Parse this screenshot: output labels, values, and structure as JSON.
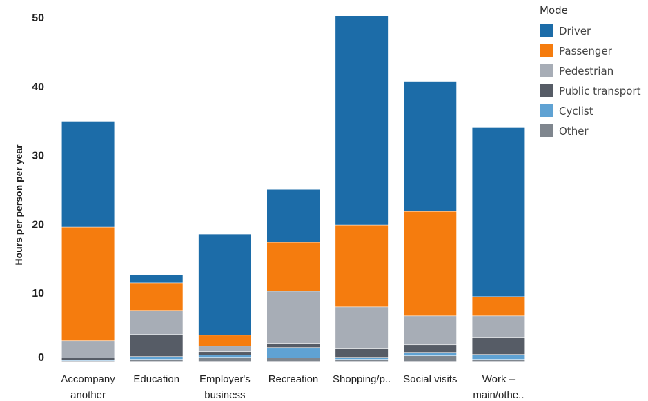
{
  "chart_data": {
    "type": "bar",
    "stacked": true,
    "ylabel": "Hours per person per year",
    "ylim": [
      0,
      50
    ],
    "yticks": [
      0,
      10,
      20,
      30,
      40,
      50
    ],
    "grid": false,
    "legend_position": "top-right",
    "legend_title": "Mode",
    "categories": [
      [
        "Accompany",
        "another"
      ],
      [
        "Education"
      ],
      [
        "Employer's",
        "business"
      ],
      [
        "Recreation"
      ],
      [
        "Shopping/p.."
      ],
      [
        "Social visits"
      ],
      [
        "Work –",
        "main/othe.."
      ]
    ],
    "series": [
      {
        "name": "Other",
        "color": "#7f868e",
        "values": [
          0.1,
          0.3,
          0.6,
          0.5,
          0.3,
          0.8,
          0.3
        ]
      },
      {
        "name": "Cyclist",
        "color": "#5fa2d3",
        "values": [
          0.1,
          0.4,
          0.3,
          1.5,
          0.3,
          0.5,
          0.7
        ]
      },
      {
        "name": "Public transport",
        "color": "#565c66",
        "values": [
          0.3,
          3.2,
          0.5,
          0.6,
          1.3,
          1.1,
          2.5
        ]
      },
      {
        "name": "Pedestrian",
        "color": "#a7adb6",
        "values": [
          2.5,
          3.5,
          0.8,
          7.6,
          6.0,
          4.2,
          3.1
        ]
      },
      {
        "name": "Passenger",
        "color": "#f57c0e",
        "values": [
          16.5,
          4.0,
          1.6,
          7.1,
          11.9,
          15.2,
          2.8
        ]
      },
      {
        "name": "Driver",
        "color": "#1c6ca8",
        "values": [
          15.3,
          1.2,
          14.7,
          7.7,
          30.4,
          18.8,
          24.6
        ]
      }
    ]
  },
  "legend": {
    "title": "Mode",
    "items": [
      {
        "label": "Driver",
        "color": "#1c6ca8"
      },
      {
        "label": "Passenger",
        "color": "#f57c0e"
      },
      {
        "label": "Pedestrian",
        "color": "#a7adb6"
      },
      {
        "label": "Public transport",
        "color": "#565c66"
      },
      {
        "label": "Cyclist",
        "color": "#5fa2d3"
      },
      {
        "label": "Other",
        "color": "#7f868e"
      }
    ]
  }
}
